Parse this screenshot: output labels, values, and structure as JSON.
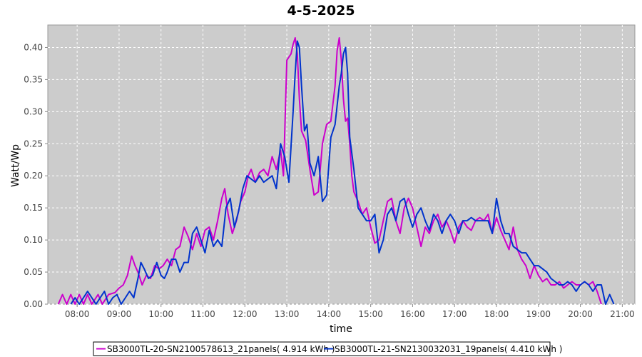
{
  "chart_data": {
    "type": "line",
    "title": "4-5-2025",
    "xlabel": "time",
    "ylabel": "Watt/Wp",
    "xlim": [
      7.3,
      21.3
    ],
    "ylim": [
      0,
      0.435
    ],
    "x_ticks": [
      "08:00",
      "09:00",
      "10:00",
      "11:00",
      "12:00",
      "13:00",
      "14:00",
      "15:00",
      "16:00",
      "17:00",
      "18:00",
      "19:00",
      "20:00",
      "21:00"
    ],
    "y_ticks": [
      "0.00",
      "0.05",
      "0.10",
      "0.15",
      "0.20",
      "0.25",
      "0.30",
      "0.35",
      "0.40"
    ],
    "grid": true,
    "legend_position": "bottom",
    "series": [
      {
        "name": "SB3000TL-20-SN2100578613_21panels( 4.914 kWh )",
        "color": "#cc00cc",
        "points": [
          [
            7.55,
            0.0
          ],
          [
            7.65,
            0.015
          ],
          [
            7.75,
            0.0
          ],
          [
            7.85,
            0.015
          ],
          [
            7.95,
            0.0
          ],
          [
            8.05,
            0.015
          ],
          [
            8.15,
            0.0
          ],
          [
            8.25,
            0.015
          ],
          [
            8.35,
            0.0
          ],
          [
            8.5,
            0.015
          ],
          [
            8.6,
            0.0
          ],
          [
            8.75,
            0.015
          ],
          [
            8.9,
            0.018
          ],
          [
            9.0,
            0.025
          ],
          [
            9.1,
            0.03
          ],
          [
            9.2,
            0.045
          ],
          [
            9.3,
            0.075
          ],
          [
            9.38,
            0.06
          ],
          [
            9.45,
            0.05
          ],
          [
            9.55,
            0.03
          ],
          [
            9.65,
            0.045
          ],
          [
            9.75,
            0.04
          ],
          [
            9.85,
            0.06
          ],
          [
            9.95,
            0.055
          ],
          [
            10.05,
            0.06
          ],
          [
            10.15,
            0.07
          ],
          [
            10.25,
            0.06
          ],
          [
            10.35,
            0.085
          ],
          [
            10.45,
            0.09
          ],
          [
            10.55,
            0.12
          ],
          [
            10.65,
            0.105
          ],
          [
            10.75,
            0.085
          ],
          [
            10.85,
            0.11
          ],
          [
            10.95,
            0.09
          ],
          [
            11.05,
            0.115
          ],
          [
            11.15,
            0.12
          ],
          [
            11.25,
            0.1
          ],
          [
            11.35,
            0.13
          ],
          [
            11.45,
            0.165
          ],
          [
            11.52,
            0.18
          ],
          [
            11.6,
            0.14
          ],
          [
            11.7,
            0.11
          ],
          [
            11.8,
            0.13
          ],
          [
            11.9,
            0.16
          ],
          [
            12.0,
            0.175
          ],
          [
            12.08,
            0.2
          ],
          [
            12.15,
            0.21
          ],
          [
            12.25,
            0.19
          ],
          [
            12.35,
            0.205
          ],
          [
            12.45,
            0.21
          ],
          [
            12.55,
            0.2
          ],
          [
            12.65,
            0.23
          ],
          [
            12.75,
            0.21
          ],
          [
            12.85,
            0.24
          ],
          [
            12.92,
            0.2
          ],
          [
            13.0,
            0.38
          ],
          [
            13.05,
            0.385
          ],
          [
            13.1,
            0.39
          ],
          [
            13.15,
            0.405
          ],
          [
            13.2,
            0.415
          ],
          [
            13.25,
            0.39
          ],
          [
            13.3,
            0.32
          ],
          [
            13.35,
            0.27
          ],
          [
            13.45,
            0.255
          ],
          [
            13.55,
            0.21
          ],
          [
            13.65,
            0.17
          ],
          [
            13.75,
            0.175
          ],
          [
            13.85,
            0.25
          ],
          [
            13.95,
            0.28
          ],
          [
            14.05,
            0.285
          ],
          [
            14.15,
            0.34
          ],
          [
            14.2,
            0.395
          ],
          [
            14.25,
            0.415
          ],
          [
            14.3,
            0.38
          ],
          [
            14.35,
            0.32
          ],
          [
            14.4,
            0.285
          ],
          [
            14.45,
            0.29
          ],
          [
            14.5,
            0.25
          ],
          [
            14.55,
            0.2
          ],
          [
            14.6,
            0.175
          ],
          [
            14.7,
            0.16
          ],
          [
            14.8,
            0.14
          ],
          [
            14.9,
            0.15
          ],
          [
            15.0,
            0.12
          ],
          [
            15.1,
            0.095
          ],
          [
            15.2,
            0.1
          ],
          [
            15.3,
            0.13
          ],
          [
            15.4,
            0.16
          ],
          [
            15.5,
            0.165
          ],
          [
            15.6,
            0.13
          ],
          [
            15.7,
            0.11
          ],
          [
            15.8,
            0.15
          ],
          [
            15.9,
            0.165
          ],
          [
            16.0,
            0.15
          ],
          [
            16.1,
            0.12
          ],
          [
            16.2,
            0.09
          ],
          [
            16.3,
            0.12
          ],
          [
            16.4,
            0.11
          ],
          [
            16.5,
            0.13
          ],
          [
            16.6,
            0.14
          ],
          [
            16.7,
            0.12
          ],
          [
            16.8,
            0.13
          ],
          [
            16.9,
            0.115
          ],
          [
            17.0,
            0.095
          ],
          [
            17.1,
            0.12
          ],
          [
            17.2,
            0.13
          ],
          [
            17.3,
            0.12
          ],
          [
            17.4,
            0.115
          ],
          [
            17.5,
            0.13
          ],
          [
            17.6,
            0.135
          ],
          [
            17.7,
            0.13
          ],
          [
            17.8,
            0.14
          ],
          [
            17.9,
            0.11
          ],
          [
            18.0,
            0.135
          ],
          [
            18.1,
            0.115
          ],
          [
            18.2,
            0.1
          ],
          [
            18.3,
            0.085
          ],
          [
            18.4,
            0.12
          ],
          [
            18.5,
            0.085
          ],
          [
            18.6,
            0.07
          ],
          [
            18.7,
            0.06
          ],
          [
            18.8,
            0.04
          ],
          [
            18.9,
            0.06
          ],
          [
            19.0,
            0.045
          ],
          [
            19.1,
            0.035
          ],
          [
            19.2,
            0.04
          ],
          [
            19.3,
            0.03
          ],
          [
            19.4,
            0.03
          ],
          [
            19.5,
            0.035
          ],
          [
            19.6,
            0.025
          ],
          [
            19.7,
            0.03
          ],
          [
            19.8,
            0.035
          ],
          [
            19.9,
            0.03
          ],
          [
            20.0,
            0.03
          ],
          [
            20.1,
            0.035
          ],
          [
            20.2,
            0.03
          ],
          [
            20.3,
            0.035
          ],
          [
            20.4,
            0.02
          ],
          [
            20.5,
            0.0
          ]
        ]
      },
      {
        "name": "SB3000TL-21-SN2130032031_19panels( 4.410 kWh )",
        "color": "#0033cc",
        "points": [
          [
            7.85,
            0.0
          ],
          [
            7.95,
            0.01
          ],
          [
            8.05,
            0.0
          ],
          [
            8.15,
            0.01
          ],
          [
            8.25,
            0.02
          ],
          [
            8.35,
            0.01
          ],
          [
            8.45,
            0.0
          ],
          [
            8.55,
            0.01
          ],
          [
            8.65,
            0.02
          ],
          [
            8.75,
            0.0
          ],
          [
            8.85,
            0.01
          ],
          [
            8.95,
            0.015
          ],
          [
            9.05,
            0.0
          ],
          [
            9.15,
            0.01
          ],
          [
            9.25,
            0.02
          ],
          [
            9.35,
            0.01
          ],
          [
            9.45,
            0.04
          ],
          [
            9.52,
            0.065
          ],
          [
            9.6,
            0.055
          ],
          [
            9.7,
            0.04
          ],
          [
            9.8,
            0.045
          ],
          [
            9.9,
            0.065
          ],
          [
            10.0,
            0.045
          ],
          [
            10.08,
            0.04
          ],
          [
            10.15,
            0.05
          ],
          [
            10.25,
            0.07
          ],
          [
            10.35,
            0.07
          ],
          [
            10.45,
            0.05
          ],
          [
            10.55,
            0.065
          ],
          [
            10.65,
            0.065
          ],
          [
            10.75,
            0.11
          ],
          [
            10.85,
            0.12
          ],
          [
            10.95,
            0.1
          ],
          [
            11.05,
            0.08
          ],
          [
            11.15,
            0.115
          ],
          [
            11.25,
            0.09
          ],
          [
            11.35,
            0.1
          ],
          [
            11.45,
            0.09
          ],
          [
            11.55,
            0.15
          ],
          [
            11.65,
            0.165
          ],
          [
            11.75,
            0.12
          ],
          [
            11.85,
            0.145
          ],
          [
            11.95,
            0.18
          ],
          [
            12.05,
            0.2
          ],
          [
            12.15,
            0.195
          ],
          [
            12.25,
            0.19
          ],
          [
            12.35,
            0.2
          ],
          [
            12.45,
            0.19
          ],
          [
            12.55,
            0.195
          ],
          [
            12.65,
            0.2
          ],
          [
            12.75,
            0.18
          ],
          [
            12.85,
            0.25
          ],
          [
            12.95,
            0.23
          ],
          [
            13.05,
            0.19
          ],
          [
            13.15,
            0.3
          ],
          [
            13.2,
            0.36
          ],
          [
            13.25,
            0.41
          ],
          [
            13.3,
            0.4
          ],
          [
            13.35,
            0.34
          ],
          [
            13.42,
            0.27
          ],
          [
            13.48,
            0.28
          ],
          [
            13.55,
            0.22
          ],
          [
            13.65,
            0.2
          ],
          [
            13.75,
            0.23
          ],
          [
            13.85,
            0.16
          ],
          [
            13.95,
            0.17
          ],
          [
            14.05,
            0.26
          ],
          [
            14.15,
            0.28
          ],
          [
            14.25,
            0.34
          ],
          [
            14.3,
            0.36
          ],
          [
            14.35,
            0.39
          ],
          [
            14.4,
            0.4
          ],
          [
            14.45,
            0.36
          ],
          [
            14.5,
            0.26
          ],
          [
            14.6,
            0.21
          ],
          [
            14.7,
            0.15
          ],
          [
            14.8,
            0.14
          ],
          [
            14.9,
            0.13
          ],
          [
            15.0,
            0.13
          ],
          [
            15.1,
            0.14
          ],
          [
            15.2,
            0.08
          ],
          [
            15.3,
            0.1
          ],
          [
            15.4,
            0.14
          ],
          [
            15.5,
            0.15
          ],
          [
            15.6,
            0.13
          ],
          [
            15.7,
            0.16
          ],
          [
            15.8,
            0.165
          ],
          [
            15.9,
            0.14
          ],
          [
            16.0,
            0.12
          ],
          [
            16.1,
            0.14
          ],
          [
            16.2,
            0.15
          ],
          [
            16.3,
            0.13
          ],
          [
            16.4,
            0.115
          ],
          [
            16.5,
            0.14
          ],
          [
            16.6,
            0.13
          ],
          [
            16.7,
            0.11
          ],
          [
            16.8,
            0.13
          ],
          [
            16.9,
            0.14
          ],
          [
            17.0,
            0.13
          ],
          [
            17.1,
            0.11
          ],
          [
            17.2,
            0.13
          ],
          [
            17.3,
            0.13
          ],
          [
            17.4,
            0.135
          ],
          [
            17.5,
            0.13
          ],
          [
            17.6,
            0.13
          ],
          [
            17.7,
            0.13
          ],
          [
            17.8,
            0.13
          ],
          [
            17.9,
            0.11
          ],
          [
            18.0,
            0.165
          ],
          [
            18.1,
            0.13
          ],
          [
            18.2,
            0.11
          ],
          [
            18.3,
            0.11
          ],
          [
            18.4,
            0.09
          ],
          [
            18.5,
            0.085
          ],
          [
            18.6,
            0.08
          ],
          [
            18.7,
            0.08
          ],
          [
            18.8,
            0.07
          ],
          [
            18.9,
            0.06
          ],
          [
            19.0,
            0.06
          ],
          [
            19.1,
            0.055
          ],
          [
            19.2,
            0.05
          ],
          [
            19.3,
            0.04
          ],
          [
            19.4,
            0.035
          ],
          [
            19.5,
            0.03
          ],
          [
            19.6,
            0.03
          ],
          [
            19.7,
            0.035
          ],
          [
            19.8,
            0.03
          ],
          [
            19.9,
            0.02
          ],
          [
            20.0,
            0.03
          ],
          [
            20.1,
            0.035
          ],
          [
            20.2,
            0.03
          ],
          [
            20.3,
            0.02
          ],
          [
            20.4,
            0.03
          ],
          [
            20.5,
            0.03
          ],
          [
            20.6,
            0.0
          ],
          [
            20.7,
            0.015
          ],
          [
            20.8,
            0.0
          ]
        ]
      }
    ]
  }
}
